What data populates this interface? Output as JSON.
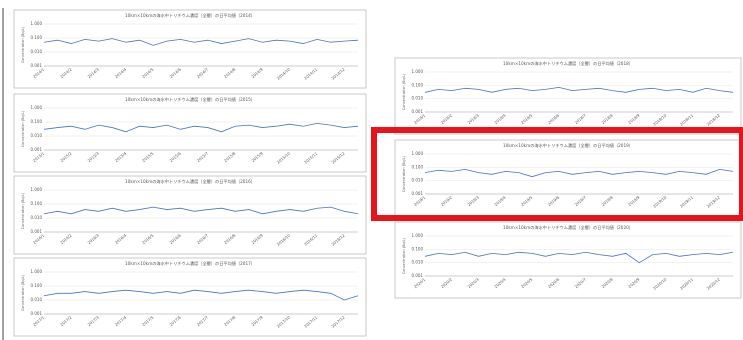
{
  "chart_data": [
    {
      "type": "line",
      "title": "10km×10kmの海水中トリチウム濃度（全層）の日平均値（2014）",
      "y_label": "Concentration (Bq/L)",
      "log_scale": true,
      "ylim": [
        0.001,
        1
      ],
      "yticks": [
        {
          "value": 0.001,
          "label": "0.001"
        },
        {
          "value": 0.01,
          "label": "0.010"
        },
        {
          "value": 0.1,
          "label": "0.100"
        },
        {
          "value": 1,
          "label": "1.000"
        }
      ],
      "categories": [
        "2014/1",
        null,
        "2014/2",
        null,
        "2014/3",
        null,
        "2014/4",
        null,
        "2014/5",
        null,
        "2014/6",
        null,
        "2014/7",
        null,
        "2014/8",
        null,
        "2014/9",
        null,
        "2014/10",
        null,
        "2014/11",
        null,
        "2014/12",
        null
      ],
      "series": [
        {
          "color": "#4a72b8",
          "values": [
            0.05,
            0.07,
            0.04,
            0.08,
            0.06,
            0.09,
            0.05,
            0.07,
            0.03,
            0.06,
            0.08,
            0.05,
            0.07,
            0.04,
            0.06,
            0.09,
            0.05,
            0.07,
            0.06,
            0.04,
            0.08,
            0.05,
            0.06,
            0.07
          ]
        }
      ]
    },
    {
      "type": "line",
      "title": "10km×10kmの海水中トリチウム濃度（全層）の日平均値（2015）",
      "y_label": "Concentration (Bq/L)",
      "log_scale": true,
      "ylim": [
        0.001,
        1
      ],
      "yticks": [
        {
          "value": 0.001,
          "label": "0.001"
        },
        {
          "value": 0.01,
          "label": "0.010"
        },
        {
          "value": 0.1,
          "label": "0.100"
        },
        {
          "value": 1,
          "label": "1.000"
        }
      ],
      "categories": [
        "2015/1",
        null,
        "2015/2",
        null,
        "2015/3",
        null,
        "2015/4",
        null,
        "2015/5",
        null,
        "2015/6",
        null,
        "2015/7",
        null,
        "2015/8",
        null,
        "2015/9",
        null,
        "2015/10",
        null,
        "2015/11",
        null,
        "2015/12",
        null
      ],
      "series": [
        {
          "color": "#4a72b8",
          "values": [
            0.03,
            0.04,
            0.05,
            0.03,
            0.06,
            0.04,
            0.02,
            0.05,
            0.04,
            0.06,
            0.03,
            0.05,
            0.04,
            0.02,
            0.05,
            0.06,
            0.04,
            0.05,
            0.07,
            0.05,
            0.08,
            0.06,
            0.04,
            0.05
          ]
        }
      ]
    },
    {
      "type": "line",
      "title": "10km×10kmの海水中トリチウム濃度（全層）の日平均値（2016）",
      "y_label": "Concentration (Bq/L)",
      "log_scale": true,
      "ylim": [
        0.001,
        1
      ],
      "yticks": [
        {
          "value": 0.001,
          "label": "0.001"
        },
        {
          "value": 0.01,
          "label": "0.010"
        },
        {
          "value": 0.1,
          "label": "0.100"
        },
        {
          "value": 1,
          "label": "1.000"
        }
      ],
      "categories": [
        "2016/1",
        null,
        "2016/2",
        null,
        "2016/3",
        null,
        "2016/4",
        null,
        "2016/5",
        null,
        "2016/6",
        null,
        "2016/7",
        null,
        "2016/8",
        null,
        "2016/9",
        null,
        "2016/10",
        null,
        "2016/11",
        null,
        "2016/12",
        null
      ],
      "series": [
        {
          "color": "#4a72b8",
          "values": [
            0.02,
            0.03,
            0.02,
            0.04,
            0.03,
            0.05,
            0.03,
            0.04,
            0.06,
            0.04,
            0.05,
            0.03,
            0.04,
            0.05,
            0.03,
            0.04,
            0.02,
            0.03,
            0.04,
            0.03,
            0.05,
            0.06,
            0.03,
            0.02
          ]
        }
      ]
    },
    {
      "type": "line",
      "title": "10km×10kmの海水中トリチウム濃度（全層）の日平均値（2017）",
      "y_label": "Concentration (Bq/L)",
      "log_scale": true,
      "ylim": [
        0.001,
        1
      ],
      "yticks": [
        {
          "value": 0.001,
          "label": "0.001"
        },
        {
          "value": 0.01,
          "label": "0.010"
        },
        {
          "value": 0.1,
          "label": "0.100"
        },
        {
          "value": 1,
          "label": "1.000"
        }
      ],
      "categories": [
        "2017/1",
        null,
        "2017/2",
        null,
        "2017/3",
        null,
        "2017/4",
        null,
        "2017/5",
        null,
        "2017/6",
        null,
        "2017/7",
        null,
        "2017/8",
        null,
        "2017/9",
        null,
        "2017/10",
        null,
        "2017/11",
        null,
        "2017/12",
        null
      ],
      "series": [
        {
          "color": "#4a72b8",
          "values": [
            0.02,
            0.03,
            0.03,
            0.04,
            0.03,
            0.04,
            0.05,
            0.04,
            0.03,
            0.04,
            0.03,
            0.05,
            0.04,
            0.03,
            0.04,
            0.05,
            0.04,
            0.03,
            0.04,
            0.05,
            0.04,
            0.03,
            0.01,
            0.02
          ]
        }
      ]
    },
    {
      "type": "line",
      "title": "10km×10kmの海水中トリチウム濃度（全層）の日平均値（2018）",
      "y_label": "Concentration (Bq/L)",
      "log_scale": true,
      "ylim": [
        0.001,
        1
      ],
      "yticks": [
        {
          "value": 0.001,
          "label": "0.001"
        },
        {
          "value": 0.01,
          "label": "0.010"
        },
        {
          "value": 0.1,
          "label": "0.100"
        },
        {
          "value": 1,
          "label": "1.000"
        }
      ],
      "categories": [
        "2018/1",
        null,
        "2018/2",
        null,
        "2018/3",
        null,
        "2018/4",
        null,
        "2018/5",
        null,
        "2018/6",
        null,
        "2018/7",
        null,
        "2018/8",
        null,
        "2018/9",
        null,
        "2018/10",
        null,
        "2018/11",
        null,
        "2018/12",
        null
      ],
      "series": [
        {
          "color": "#4a72b8",
          "values": [
            0.03,
            0.05,
            0.04,
            0.06,
            0.05,
            0.03,
            0.05,
            0.06,
            0.04,
            0.05,
            0.07,
            0.04,
            0.05,
            0.06,
            0.04,
            0.03,
            0.05,
            0.06,
            0.04,
            0.05,
            0.03,
            0.06,
            0.04,
            0.03
          ]
        }
      ]
    },
    {
      "type": "line",
      "title": "10km×10kmの海水中トリチウム濃度（全層）の日平均値（2019）",
      "y_label": "Concentration (Bq/L)",
      "log_scale": true,
      "ylim": [
        0.001,
        1
      ],
      "yticks": [
        {
          "value": 0.001,
          "label": "0.001"
        },
        {
          "value": 0.01,
          "label": "0.010"
        },
        {
          "value": 0.1,
          "label": "0.100"
        },
        {
          "value": 1,
          "label": "1.000"
        }
      ],
      "categories": [
        "2019/1",
        null,
        "2019/2",
        null,
        "2019/3",
        null,
        "2019/4",
        null,
        "2019/5",
        null,
        "2019/6",
        null,
        "2019/7",
        null,
        "2019/8",
        null,
        "2019/9",
        null,
        "2019/10",
        null,
        "2019/11",
        null,
        "2019/12",
        null
      ],
      "series": [
        {
          "color": "#4a72b8",
          "values": [
            0.04,
            0.06,
            0.05,
            0.07,
            0.04,
            0.03,
            0.05,
            0.04,
            0.02,
            0.04,
            0.05,
            0.03,
            0.04,
            0.05,
            0.03,
            0.04,
            0.05,
            0.04,
            0.03,
            0.05,
            0.04,
            0.03,
            0.07,
            0.05
          ]
        }
      ]
    },
    {
      "type": "line",
      "title": "10km×10kmの海水中トリチウム濃度（全層）の日平均値（2020）",
      "y_label": "Concentration (Bq/L)",
      "log_scale": true,
      "ylim": [
        0.001,
        1
      ],
      "yticks": [
        {
          "value": 0.001,
          "label": "0.001"
        },
        {
          "value": 0.01,
          "label": "0.010"
        },
        {
          "value": 0.1,
          "label": "0.100"
        },
        {
          "value": 1,
          "label": "1.000"
        }
      ],
      "categories": [
        "2020/1",
        null,
        "2020/2",
        null,
        "2020/3",
        null,
        "2020/4",
        null,
        "2020/5",
        null,
        "2020/6",
        null,
        "2020/7",
        null,
        "2020/8",
        null,
        "2020/9",
        null,
        "2020/10",
        null,
        "2020/11",
        null,
        "2020/12",
        null
      ],
      "series": [
        {
          "color": "#4a72b8",
          "values": [
            0.03,
            0.05,
            0.04,
            0.06,
            0.03,
            0.05,
            0.04,
            0.06,
            0.05,
            0.03,
            0.05,
            0.04,
            0.06,
            0.04,
            0.03,
            0.05,
            0.01,
            0.04,
            0.05,
            0.03,
            0.04,
            0.05,
            0.04,
            0.06
          ]
        }
      ]
    }
  ]
}
